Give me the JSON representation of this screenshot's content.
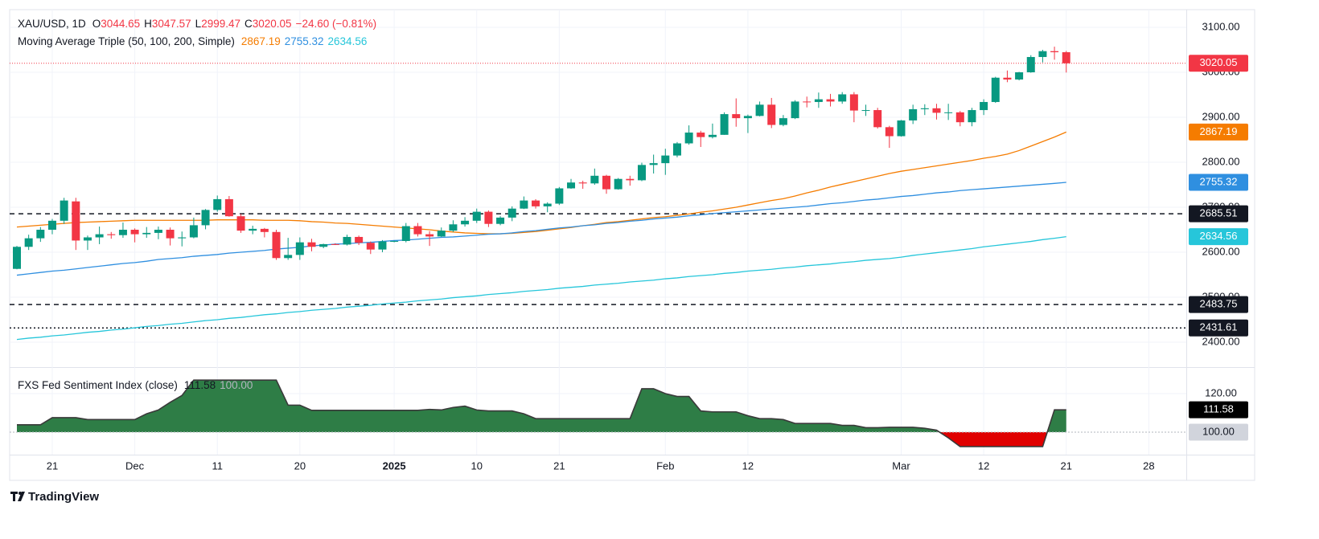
{
  "chart_data": [
    {
      "type": "candlestick",
      "title": "XAU/USD, 1D",
      "legend_letters": [
        "O",
        "H",
        "L",
        "C"
      ],
      "change": "−24.60 (−0.81%)",
      "categories": [
        null,
        null,
        null,
        "21",
        null,
        null,
        null,
        null,
        null,
        null,
        "Dec",
        null,
        null,
        null,
        null,
        null,
        null,
        "11",
        null,
        null,
        null,
        null,
        null,
        null,
        "20",
        null,
        null,
        null,
        null,
        null,
        null,
        null,
        "2025",
        null,
        null,
        null,
        null,
        null,
        null,
        "10",
        null,
        null,
        null,
        null,
        null,
        null,
        "21",
        null,
        null,
        null,
        null,
        null,
        null,
        null,
        null,
        "Feb",
        null,
        null,
        null,
        null,
        null,
        null,
        "12",
        null,
        null,
        null,
        null,
        null,
        null,
        null,
        null,
        null,
        null,
        null,
        null,
        "Mar",
        null,
        null,
        null,
        null,
        null,
        null,
        "12",
        null,
        null,
        null,
        null,
        null,
        null,
        "21"
      ],
      "x_future_labels": [
        "28"
      ],
      "open": [
        2563,
        2612,
        2631,
        2650,
        2670,
        2713,
        2626,
        2633,
        2640,
        2638,
        2650,
        2640,
        2643,
        2650,
        2631,
        2633,
        2660,
        2694,
        2718,
        2680,
        2648,
        2652,
        2645,
        2587,
        2594,
        2622,
        2612,
        2618,
        2617,
        2634,
        2621,
        2606,
        2624,
        2625,
        2658,
        2640,
        2635,
        2648,
        2662,
        2670,
        2690,
        2663,
        2677,
        2697,
        2715,
        2702,
        2708,
        2742,
        2755,
        2753,
        2770,
        2740,
        2763,
        2760,
        2794,
        2798,
        2815,
        2842,
        2866,
        2856,
        2861,
        2907,
        2898,
        2903,
        2928,
        2883,
        2898,
        2935,
        2934,
        2940,
        2935,
        2951,
        2915,
        2916,
        2878,
        2858,
        2893,
        2918,
        2920,
        2910,
        2911,
        2889,
        2916,
        2934,
        2988,
        2984,
        3000,
        3034,
        3047,
        3044.65
      ],
      "high": [
        2614,
        2639,
        2656,
        2674,
        2721,
        2721,
        2637,
        2657,
        2645,
        2666,
        2653,
        2656,
        2657,
        2655,
        2646,
        2677,
        2696,
        2726,
        2725,
        2685,
        2659,
        2654,
        2650,
        2632,
        2633,
        2630,
        2619,
        2620,
        2639,
        2637,
        2624,
        2627,
        2626,
        2665,
        2665,
        2647,
        2655,
        2671,
        2678,
        2697,
        2693,
        2680,
        2702,
        2724,
        2718,
        2711,
        2745,
        2763,
        2759,
        2786,
        2772,
        2765,
        2770,
        2799,
        2817,
        2830,
        2845,
        2882,
        2870,
        2886,
        2911,
        2942,
        2906,
        2935,
        2943,
        2905,
        2938,
        2946,
        2955,
        2952,
        2956,
        2956,
        2928,
        2921,
        2881,
        2894,
        2928,
        2929,
        2930,
        2930,
        2914,
        2921,
        2940,
        2990,
        3004,
        3001,
        3038,
        3050,
        3057,
        3047.57
      ],
      "low": [
        2562,
        2605,
        2623,
        2640,
        2663,
        2605,
        2605,
        2618,
        2630,
        2632,
        2622,
        2632,
        2629,
        2615,
        2613,
        2631,
        2651,
        2690,
        2679,
        2643,
        2640,
        2633,
        2583,
        2583,
        2583,
        2602,
        2609,
        2616,
        2615,
        2616,
        2596,
        2600,
        2622,
        2622,
        2635,
        2614,
        2634,
        2645,
        2657,
        2665,
        2656,
        2660,
        2669,
        2696,
        2697,
        2689,
        2705,
        2741,
        2741,
        2750,
        2730,
        2739,
        2748,
        2758,
        2775,
        2772,
        2811,
        2839,
        2834,
        2853,
        2861,
        2879,
        2865,
        2902,
        2876,
        2880,
        2896,
        2922,
        2921,
        2924,
        2930,
        2889,
        2903,
        2875,
        2832,
        2857,
        2885,
        2905,
        2895,
        2894,
        2880,
        2880,
        2905,
        2932,
        2978,
        2982,
        2999,
        3022,
        3028,
        2999.47
      ],
      "close": [
        2612,
        2631,
        2650,
        2670,
        2715,
        2626,
        2633,
        2640,
        2638,
        2650,
        2640,
        2643,
        2650,
        2631,
        2633,
        2660,
        2694,
        2718,
        2680,
        2648,
        2652,
        2645,
        2587,
        2594,
        2622,
        2612,
        2618,
        2617,
        2634,
        2621,
        2606,
        2624,
        2625,
        2658,
        2640,
        2635,
        2648,
        2662,
        2670,
        2690,
        2663,
        2677,
        2697,
        2715,
        2702,
        2708,
        2742,
        2755,
        2753,
        2770,
        2740,
        2763,
        2760,
        2794,
        2798,
        2815,
        2842,
        2866,
        2856,
        2861,
        2907,
        2898,
        2903,
        2928,
        2883,
        2898,
        2935,
        2934,
        2940,
        2935,
        2951,
        2915,
        2916,
        2878,
        2858,
        2893,
        2918,
        2920,
        2910,
        2911,
        2889,
        2916,
        2934,
        2988,
        2984,
        3000,
        3034,
        3047,
        3044.65,
        3020.05
      ],
      "up_color": "#089981",
      "down_color": "#f23645",
      "ma_title": "Moving Average Triple (50, 100, 200, Simple)",
      "series": [
        {
          "color": "#f57c00",
          "values": [
            2656,
            2658,
            2660,
            2662,
            2664,
            2666,
            2667,
            2668,
            2669,
            2670,
            2671,
            2671,
            2671,
            2671,
            2671,
            2671,
            2671,
            2672,
            2672,
            2672,
            2672,
            2671,
            2671,
            2671,
            2670,
            2668,
            2667,
            2665,
            2664,
            2662,
            2660,
            2658,
            2656,
            2654,
            2652,
            2650,
            2647,
            2645,
            2643,
            2642,
            2641,
            2641,
            2642,
            2644,
            2646,
            2649,
            2652,
            2655,
            2659,
            2662,
            2666,
            2668,
            2671,
            2674,
            2677,
            2679,
            2682,
            2685,
            2689,
            2692,
            2696,
            2700,
            2705,
            2710,
            2715,
            2719,
            2725,
            2732,
            2738,
            2745,
            2751,
            2757,
            2763,
            2769,
            2775,
            2780,
            2784,
            2788,
            2792,
            2796,
            2800,
            2804,
            2809,
            2813,
            2818,
            2826,
            2836,
            2846,
            2856,
            2867.19
          ]
        },
        {
          "color": "#2f8fe0",
          "values": [
            2549,
            2552,
            2555,
            2558,
            2560,
            2563,
            2566,
            2569,
            2572,
            2575,
            2577,
            2580,
            2584,
            2586,
            2588,
            2591,
            2593,
            2595,
            2598,
            2600,
            2602,
            2604,
            2607,
            2609,
            2611,
            2614,
            2616,
            2618,
            2619,
            2621,
            2622,
            2624,
            2626,
            2627,
            2629,
            2631,
            2633,
            2634,
            2636,
            2638,
            2640,
            2641,
            2643,
            2646,
            2648,
            2651,
            2654,
            2656,
            2659,
            2661,
            2664,
            2666,
            2669,
            2671,
            2674,
            2676,
            2678,
            2681,
            2683,
            2686,
            2688,
            2690,
            2692,
            2694,
            2696,
            2698,
            2700,
            2702,
            2705,
            2708,
            2710,
            2713,
            2716,
            2718,
            2721,
            2724,
            2726,
            2729,
            2732,
            2734,
            2737,
            2739,
            2741,
            2743,
            2745,
            2747,
            2749,
            2751,
            2753,
            2755.32
          ]
        },
        {
          "color": "#26c6da",
          "values": [
            2406,
            2409,
            2411,
            2414,
            2416,
            2419,
            2422,
            2424,
            2427,
            2429,
            2432,
            2435,
            2437,
            2440,
            2442,
            2445,
            2448,
            2450,
            2453,
            2455,
            2458,
            2461,
            2463,
            2466,
            2468,
            2471,
            2473,
            2475,
            2478,
            2480,
            2482,
            2485,
            2487,
            2489,
            2492,
            2494,
            2496,
            2499,
            2501,
            2503,
            2506,
            2508,
            2510,
            2513,
            2515,
            2517,
            2520,
            2522,
            2524,
            2527,
            2529,
            2531,
            2534,
            2536,
            2538,
            2541,
            2543,
            2546,
            2548,
            2550,
            2553,
            2555,
            2558,
            2560,
            2562,
            2565,
            2567,
            2570,
            2572,
            2574,
            2577,
            2579,
            2582,
            2584,
            2586,
            2589,
            2593,
            2596,
            2599,
            2602,
            2605,
            2608,
            2612,
            2615,
            2618,
            2621,
            2624,
            2628,
            2631,
            2634.56
          ]
        }
      ],
      "hlines": [
        {
          "value": 2685.51,
          "style": "dashed"
        },
        {
          "value": 2483.75,
          "style": "dashed"
        },
        {
          "value": 2431.61,
          "style": "dotted"
        }
      ],
      "ylim": [
        2348.2,
        3139.3
      ],
      "yticks": [
        {
          "value": 2400,
          "label": "2400.00"
        },
        {
          "value": 2500,
          "label": "2500.00"
        },
        {
          "value": 2600,
          "label": "2600.00"
        },
        {
          "value": 2700,
          "label": "2700.00"
        },
        {
          "value": 2800,
          "label": "2800.00"
        },
        {
          "value": 2900,
          "label": "2900.00"
        },
        {
          "value": 3000,
          "label": "3000.00"
        },
        {
          "value": 3100,
          "label": "3100.00"
        }
      ],
      "grid": true
    },
    {
      "type": "area",
      "title": "FXS Fed Sentiment Index (close)",
      "values": [
        103.8,
        103.8,
        103.8,
        107.5,
        107.5,
        107.5,
        106.5,
        106.5,
        106.5,
        106.5,
        106.5,
        109.5,
        111.5,
        115.5,
        119,
        127,
        127,
        127,
        127,
        127,
        127,
        127,
        127,
        114,
        114,
        111.3,
        111.3,
        111.3,
        111.3,
        111.3,
        111.3,
        111.3,
        111.3,
        111.3,
        111.3,
        111.8,
        111.5,
        112.8,
        113.5,
        111.5,
        111,
        111,
        111,
        109.5,
        107,
        107,
        107,
        107,
        107,
        107,
        107,
        107,
        107,
        122.5,
        122.5,
        120,
        118.5,
        118.5,
        111,
        110.5,
        110.5,
        110.5,
        108.5,
        107,
        107,
        106.5,
        104.5,
        104.5,
        104.5,
        104.5,
        103.5,
        103.5,
        102.3,
        102.3,
        102.5,
        102.5,
        102.5,
        102,
        101,
        97,
        92.5,
        92.5,
        92.5,
        92.5,
        92.5,
        92.5,
        92.5,
        92.5,
        111.58,
        111.58
      ],
      "baseline": {
        "value": 100,
        "label": "100.00"
      },
      "up_color": "#2e7d46",
      "down_color": "#e00000",
      "line_color": "#3a3a3a",
      "ylim": [
        88.3,
        132.5
      ],
      "yticks": [
        {
          "value": 120,
          "label": "120.00"
        }
      ],
      "grid": true
    }
  ],
  "brand": "TradingView"
}
